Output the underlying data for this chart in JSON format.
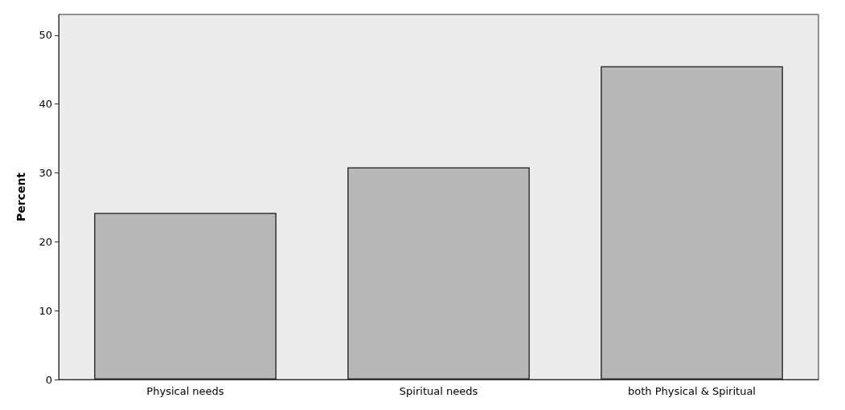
{
  "chart_data": {
    "type": "bar",
    "ylabel": "Percent",
    "categories": [
      "Physical needs",
      "Spiritual needs",
      "both Physical & Spiritual"
    ],
    "values": [
      24.2,
      30.8,
      45.5
    ],
    "color": "#b8b8b8",
    "ylim": [
      0,
      53
    ],
    "yticks": [
      0,
      10,
      20,
      30,
      40,
      50
    ],
    "grid": false
  }
}
